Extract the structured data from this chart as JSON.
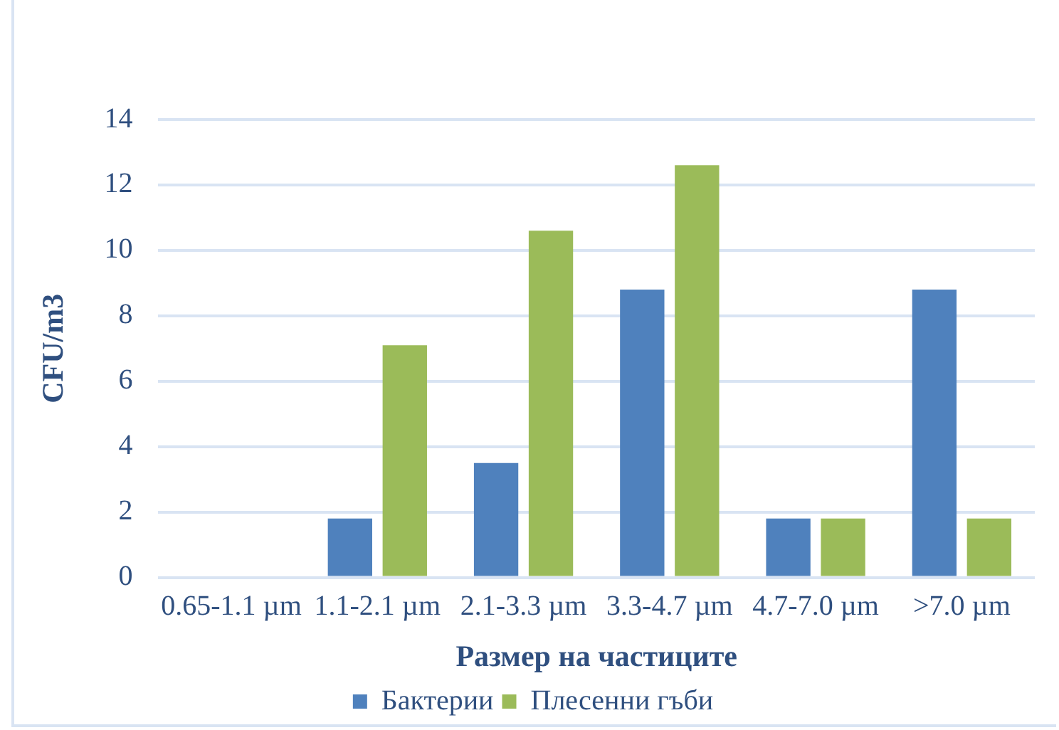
{
  "chart_data": {
    "type": "bar",
    "xlabel": "Размер на частиците",
    "ylabel": "CFU/m3",
    "categories": [
      "0.65-1.1 µm",
      "1.1-2.1 µm",
      "2.1-3.3 µm",
      "3.3-4.7 µm",
      "4.7-7.0 µm",
      ">7.0 µm"
    ],
    "series": [
      {
        "name": "Бактерии",
        "color": "#4f81bd",
        "values": [
          0,
          1.8,
          3.5,
          8.8,
          1.8,
          8.8
        ]
      },
      {
        "name": "Плесенни гъби",
        "color": "#9bbb59",
        "values": [
          0,
          7.1,
          10.6,
          12.6,
          1.8,
          1.8
        ]
      }
    ],
    "ylim": [
      0,
      14
    ],
    "yticks": [
      0,
      2,
      4,
      6,
      8,
      10,
      12,
      14
    ],
    "grid": "y",
    "legend": "bottom"
  }
}
